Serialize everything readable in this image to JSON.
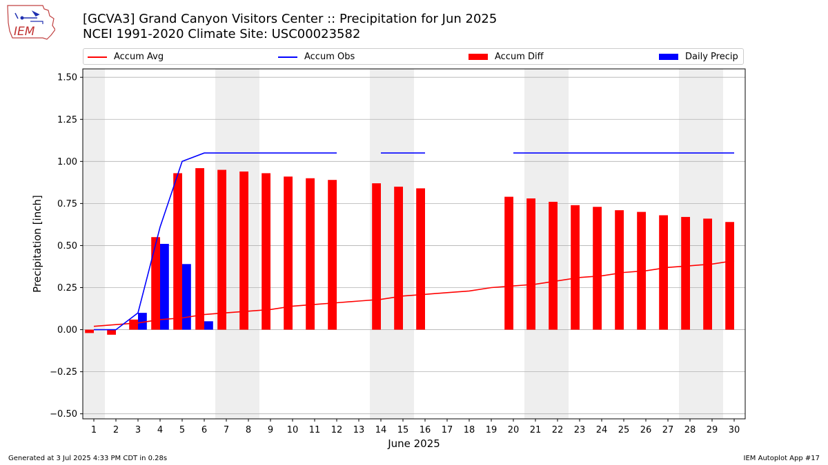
{
  "header": {
    "title_line1": "[GCVA3] Grand Canyon Visitors Center :: Precipitation for Jun 2025",
    "title_line2": "NCEI 1991-2020 Climate Site: USC00023582",
    "logo_text": "IEM"
  },
  "legend": {
    "items": [
      {
        "label": "Accum Avg",
        "color": "#ff0000",
        "kind": "line"
      },
      {
        "label": "Accum Obs",
        "color": "#0000ff",
        "kind": "line"
      },
      {
        "label": "Accum Diff",
        "color": "#ff0000",
        "kind": "box"
      },
      {
        "label": "Daily Precip",
        "color": "#0000ff",
        "kind": "box"
      }
    ]
  },
  "footer": {
    "generated": "Generated at 3 Jul 2025 4:33 PM CDT in 0.28s",
    "app": "IEM Autoplot App #17"
  },
  "chart_data": {
    "type": "bar",
    "xlabel": "June 2025",
    "ylabel": "Precipitation [inch]",
    "ylim": [
      -0.53,
      1.55
    ],
    "xlim": [
      0.5,
      30.5
    ],
    "yticks": [
      -0.5,
      -0.25,
      0.0,
      0.25,
      0.5,
      0.75,
      1.0,
      1.25,
      1.5
    ],
    "ytick_labels": [
      "−0.50",
      "−0.25",
      "0.00",
      "0.25",
      "0.50",
      "0.75",
      "1.00",
      "1.25",
      "1.50"
    ],
    "x": [
      1,
      2,
      3,
      4,
      5,
      6,
      7,
      8,
      9,
      10,
      11,
      12,
      13,
      14,
      15,
      16,
      17,
      18,
      19,
      20,
      21,
      22,
      23,
      24,
      25,
      26,
      27,
      28,
      29,
      30
    ],
    "grid": "y",
    "shaded_days": [
      1,
      7,
      8,
      14,
      15,
      21,
      22,
      28,
      29
    ],
    "colors": {
      "avg": "#ff0000",
      "obs": "#0000ff",
      "diff": "#ff0000",
      "daily": "#0000ff",
      "shade": "#eeeeee",
      "grid": "#b0b0b0"
    },
    "series": [
      {
        "name": "Accum Avg",
        "kind": "line",
        "values": [
          0.02,
          0.03,
          0.04,
          0.06,
          0.07,
          0.09,
          0.1,
          0.11,
          0.12,
          0.14,
          0.15,
          0.16,
          0.17,
          0.18,
          0.2,
          0.21,
          0.22,
          0.23,
          0.25,
          0.26,
          0.27,
          0.29,
          0.31,
          0.32,
          0.34,
          0.35,
          0.37,
          0.38,
          0.39,
          0.41
        ]
      },
      {
        "name": "Accum Obs",
        "kind": "line",
        "values": [
          0.0,
          0.0,
          0.1,
          0.61,
          1.0,
          1.05,
          1.05,
          1.05,
          1.05,
          1.05,
          1.05,
          1.05,
          null,
          1.05,
          1.05,
          1.05,
          null,
          null,
          null,
          1.05,
          1.05,
          1.05,
          1.05,
          1.05,
          1.05,
          1.05,
          1.05,
          1.05,
          1.05,
          1.05
        ]
      },
      {
        "name": "Accum Diff",
        "kind": "bar",
        "values": [
          -0.02,
          -0.03,
          0.06,
          0.55,
          0.93,
          0.96,
          0.95,
          0.94,
          0.93,
          0.91,
          0.9,
          0.89,
          null,
          0.87,
          0.85,
          0.84,
          null,
          null,
          null,
          0.79,
          0.78,
          0.76,
          0.74,
          0.73,
          0.71,
          0.7,
          0.68,
          0.67,
          0.66,
          0.64
        ]
      },
      {
        "name": "Daily Precip",
        "kind": "bar",
        "values": [
          0,
          0,
          0.1,
          0.51,
          0.39,
          0.05,
          0,
          0,
          0,
          0,
          0,
          0,
          null,
          0,
          0,
          0,
          null,
          null,
          null,
          0,
          0,
          0,
          0,
          0,
          0,
          0,
          0,
          0,
          0,
          0
        ]
      }
    ]
  }
}
